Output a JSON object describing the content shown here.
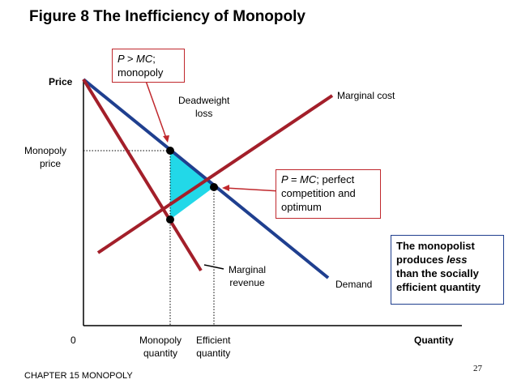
{
  "title": "Figure 8 The Inefficiency of Monopoly",
  "axes": {
    "y_label": "Price",
    "x_label": "Quantity",
    "origin": "0",
    "monopoly_price": [
      "Monopoly",
      "price"
    ],
    "monopoly_quantity": [
      "Monopoly",
      "quantity"
    ],
    "efficient_quantity": [
      "Efficient",
      "quantity"
    ]
  },
  "curves": {
    "marginal_cost": "Marginal cost",
    "demand": "Demand",
    "marginal_revenue": [
      "Marginal",
      "revenue"
    ]
  },
  "deadweight_loss": [
    "Deadweight",
    "loss"
  ],
  "callouts": {
    "monopoly": {
      "line1_italic": "P > MC",
      "line1_rest": ";",
      "line2": "monopoly"
    },
    "perfect": {
      "line1_italic": "P = MC",
      "line1_rest": "; perfect",
      "line2": "competition and",
      "line3": "optimum"
    }
  },
  "note": [
    "The monopolist",
    "produces ",
    "less",
    "than the socially",
    "efficient quantity"
  ],
  "footer": "CHAPTER 15 MONOPOLY",
  "page_number": "27",
  "colors": {
    "demand": "#1f3f8f",
    "cost_revenue": "#a31f2a",
    "deadweight": "#22d8e8",
    "callout_border": "#c0282d",
    "note_border": "#1f3f8f"
  }
}
